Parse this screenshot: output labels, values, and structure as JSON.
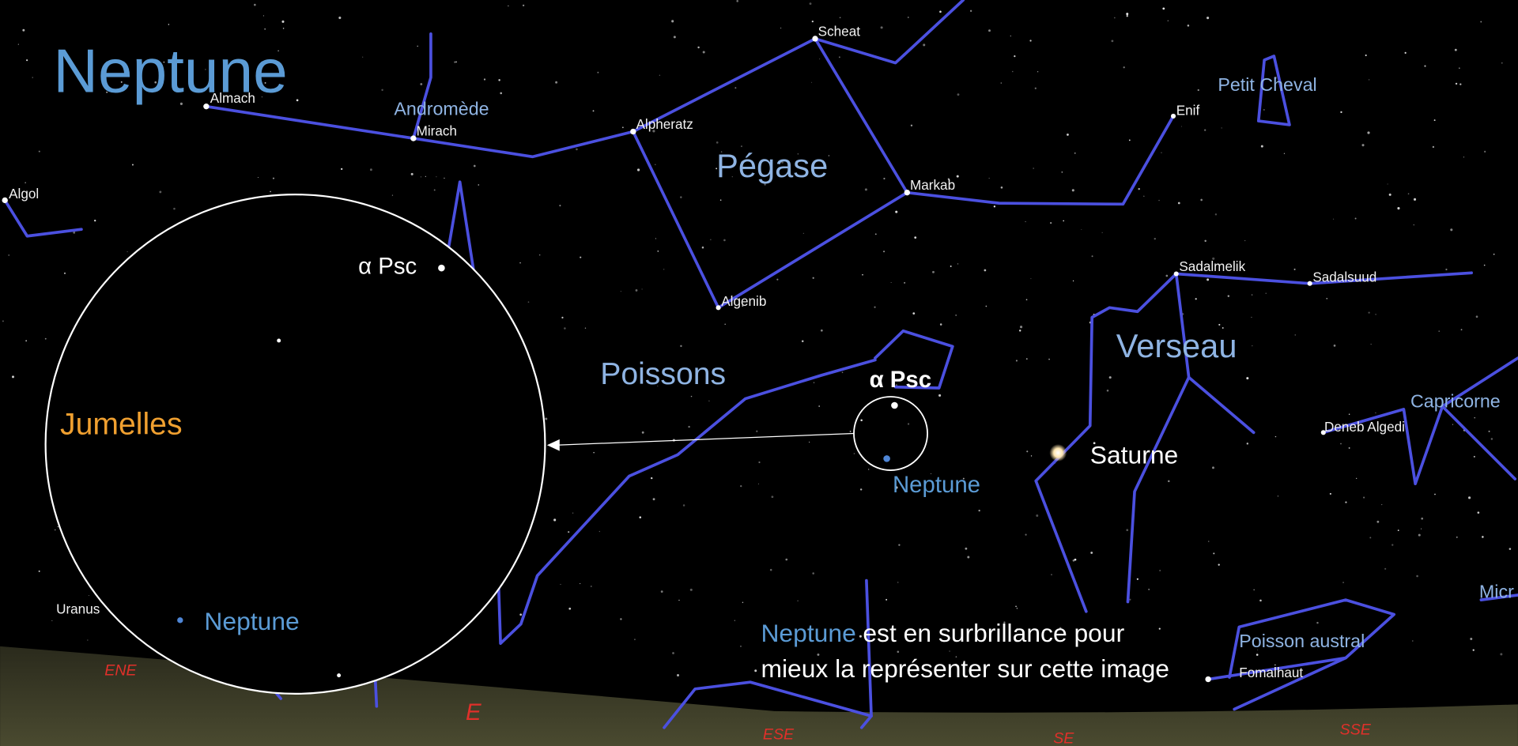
{
  "title": "Neptune",
  "stars": [
    "Almach",
    "Mirach",
    "Alpheratz",
    "Scheat",
    "Markab",
    "Algenib",
    "Enif",
    "Algol",
    "Sadalmelik",
    "Sadalsuud",
    "Deneb Algedi",
    "Fomalhaut",
    "Uranus"
  ],
  "constellations": [
    "Andromède",
    "Pégase",
    "Poissons",
    "Verseau",
    "Petit Cheval",
    "Capricorne",
    "Poisson austral",
    "Micr"
  ],
  "planets": {
    "alpha_psc": "α Psc",
    "neptune": "Neptune",
    "saturne": "Saturne"
  },
  "inset": {
    "label": "Jumelles",
    "alpha_psc": "α Psc",
    "neptune": "Neptune"
  },
  "directions": [
    "ENE",
    "E",
    "ESE",
    "SE",
    "SSE"
  ],
  "caption": {
    "highlight": "Neptune",
    "line1": "est en surbrillance pour",
    "line2": "mieux la représenter sur cette image"
  }
}
